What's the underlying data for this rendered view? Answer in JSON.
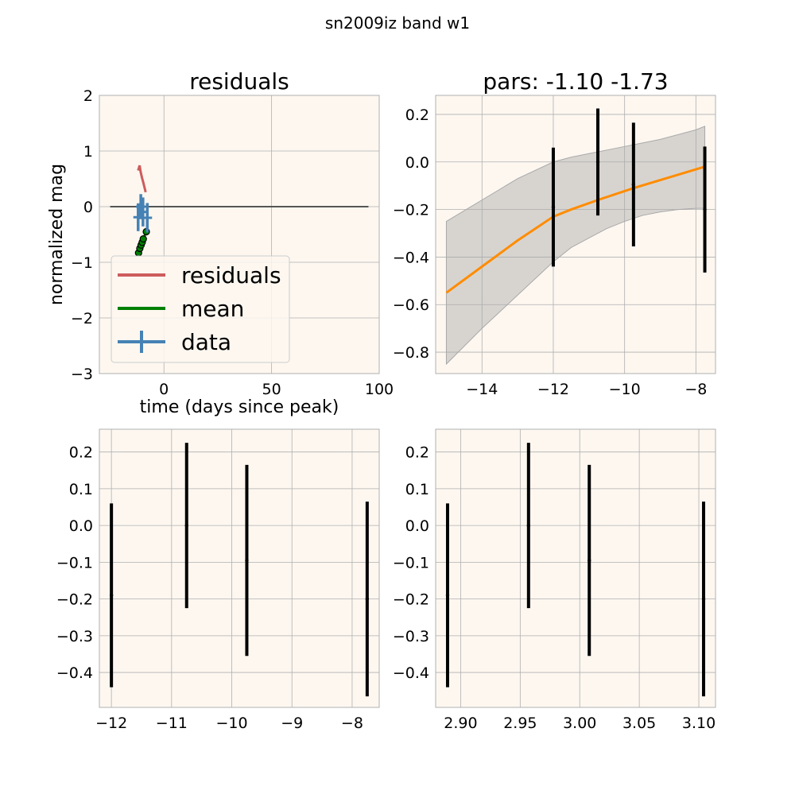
{
  "figure": {
    "suptitle": "sn2009iz band w1",
    "panel_bg": "#fdf7f0"
  },
  "chart_data": [
    {
      "id": "residuals",
      "type": "line",
      "title": "residuals",
      "xlabel": "time (days since peak)",
      "ylabel": "normalized mag",
      "xlim": [
        -30,
        100
      ],
      "ylim": [
        -3,
        2
      ],
      "xticks": [
        0,
        50,
        100
      ],
      "yticks": [
        -3,
        -2,
        -1,
        0,
        1,
        2
      ],
      "grid": true,
      "legend": {
        "position": "lower-left",
        "entries": [
          {
            "label": "residuals",
            "color": "#cd5c5c",
            "kind": "line"
          },
          {
            "label": "mean",
            "color": "#008000",
            "kind": "line"
          },
          {
            "label": "data",
            "color": "#4682b4",
            "kind": "errorbar"
          }
        ]
      },
      "zero_line": {
        "x": [
          -25,
          95
        ],
        "y": 0,
        "color": "#555555"
      },
      "series": [
        {
          "name": "residuals",
          "color": "#cd5c5c",
          "x": [
            -12,
            -11.3,
            -10.8,
            -10.2,
            -9.5,
            -8.5
          ],
          "y": [
            0.65,
            0.74,
            0.62,
            0.52,
            0.42,
            0.26
          ]
        },
        {
          "name": "mean",
          "color": "#008000",
          "marker": true,
          "x": [
            -11.8,
            -11.2,
            -10.6,
            -10.1,
            -9.6,
            -8.2
          ],
          "y": [
            -0.83,
            -0.75,
            -0.69,
            -0.64,
            -0.58,
            -0.45
          ]
        },
        {
          "name": "data",
          "color": "#4682b4",
          "errorbar": true,
          "x": [
            -12,
            -10.75,
            -9.75,
            -7.75
          ],
          "y": [
            -0.19,
            0.0,
            -0.095,
            -0.2
          ],
          "yerr": [
            0.25,
            0.225,
            0.26,
            0.265
          ]
        }
      ]
    },
    {
      "id": "pars",
      "type": "line",
      "title": "pars: -1.10 -1.73",
      "xlim": [
        -15.3,
        -7.45
      ],
      "ylim": [
        -0.89,
        0.28
      ],
      "xticks": [
        -14,
        -12,
        -10,
        -8
      ],
      "yticks": [
        -0.8,
        -0.6,
        -0.4,
        -0.2,
        0.0,
        0.2
      ],
      "grid": true,
      "band": {
        "color": "#a9a9a9",
        "x": [
          -15,
          -14,
          -13,
          -12,
          -11.5,
          -11,
          -10.5,
          -10,
          -9.5,
          -9,
          -8.5,
          -8,
          -7.75
        ],
        "upper": [
          -0.25,
          -0.16,
          -0.07,
          0.0,
          0.02,
          0.035,
          0.05,
          0.065,
          0.08,
          0.095,
          0.115,
          0.135,
          0.15
        ],
        "lower": [
          -0.85,
          -0.7,
          -0.56,
          -0.42,
          -0.36,
          -0.32,
          -0.28,
          -0.25,
          -0.225,
          -0.21,
          -0.2,
          -0.195,
          -0.195
        ]
      },
      "series": [
        {
          "name": "mean",
          "color": "#ff8c00",
          "x": [
            -15,
            -14,
            -13,
            -12,
            -11.5,
            -10.75,
            -9.75,
            -7.75
          ],
          "y": [
            -0.55,
            -0.44,
            -0.33,
            -0.23,
            -0.2,
            -0.16,
            -0.11,
            -0.02
          ]
        },
        {
          "name": "data",
          "color": "#000000",
          "errorbar": true,
          "x": [
            -12,
            -10.75,
            -9.75,
            -7.75
          ],
          "y": [
            -0.19,
            0.0,
            -0.095,
            -0.2
          ],
          "yerr": [
            0.25,
            0.225,
            0.26,
            0.265
          ]
        }
      ]
    },
    {
      "id": "data-vs-time",
      "type": "scatter",
      "xlim": [
        -12.2,
        -7.55
      ],
      "ylim": [
        -0.495,
        0.262
      ],
      "xticks": [
        -12,
        -11,
        -10,
        -9,
        -8
      ],
      "yticks": [
        -0.4,
        -0.3,
        -0.2,
        -0.1,
        0.0,
        0.1,
        0.2
      ],
      "grid": true,
      "series": [
        {
          "name": "data",
          "color": "#000000",
          "errorbar": true,
          "x": [
            -12,
            -10.75,
            -9.75,
            -7.75
          ],
          "y": [
            -0.19,
            0.0,
            -0.095,
            -0.2
          ],
          "yerr": [
            0.25,
            0.225,
            0.26,
            0.265
          ]
        }
      ]
    },
    {
      "id": "data-vs-log",
      "type": "scatter",
      "xlim": [
        2.879,
        3.114
      ],
      "ylim": [
        -0.495,
        0.262
      ],
      "xticks": [
        2.9,
        2.95,
        3.0,
        3.05,
        3.1
      ],
      "yticks": [
        -0.4,
        -0.3,
        -0.2,
        -0.1,
        0.0,
        0.1,
        0.2
      ],
      "tick_decimals_x": 2,
      "grid": true,
      "series": [
        {
          "name": "data",
          "color": "#000000",
          "errorbar": true,
          "x": [
            2.889,
            2.957,
            3.008,
            3.104
          ],
          "y": [
            -0.19,
            0.0,
            -0.095,
            -0.2
          ],
          "yerr": [
            0.25,
            0.225,
            0.26,
            0.265
          ]
        }
      ]
    }
  ]
}
